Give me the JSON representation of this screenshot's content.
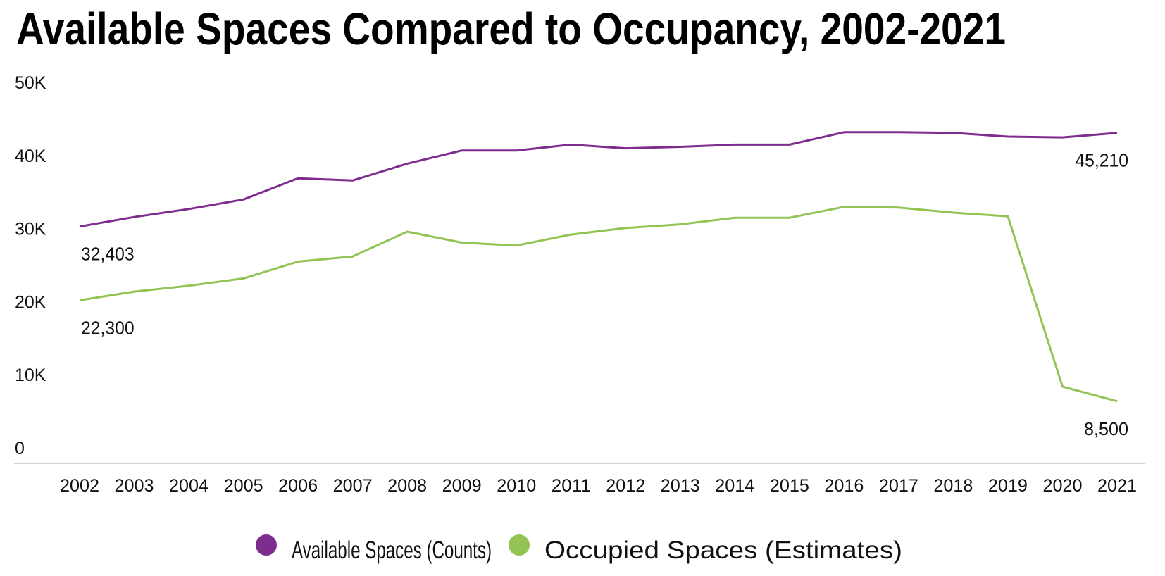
{
  "chart_data": {
    "type": "line",
    "title": "Available Spaces Compared to Occupancy, 2002-2021",
    "xlabel": "",
    "ylabel": "",
    "x": [
      "2002",
      "2003",
      "2004",
      "2005",
      "2006",
      "2007",
      "2008",
      "2009",
      "2010",
      "2011",
      "2012",
      "2013",
      "2014",
      "2015",
      "2016",
      "2017",
      "2018",
      "2019",
      "2020",
      "2021"
    ],
    "ylim": [
      0,
      50000
    ],
    "yticks": [
      0,
      10000,
      20000,
      30000,
      40000,
      50000
    ],
    "ytick_labels": [
      "0",
      "10K",
      "20K",
      "30K",
      "40K",
      "50K"
    ],
    "grid": false,
    "legend_position": "bottom-center",
    "series": [
      {
        "name": "Available Spaces (Counts)",
        "color": "#7e2d8e",
        "values": [
          32403,
          33700,
          34800,
          36100,
          39000,
          38700,
          41000,
          42800,
          42800,
          43600,
          43100,
          43300,
          43600,
          43600,
          45300,
          45300,
          45200,
          44700,
          44600,
          45210
        ],
        "data_labels": [
          {
            "index": 0,
            "text": "32,403"
          },
          {
            "index": 19,
            "text": "45,210"
          }
        ]
      },
      {
        "name": "Occupied Spaces (Estimates)",
        "color": "#93c353",
        "values": [
          22300,
          23500,
          24300,
          25300,
          27600,
          28300,
          31700,
          30200,
          29800,
          31300,
          32200,
          32700,
          33600,
          33600,
          35100,
          35000,
          34300,
          33800,
          10500,
          8500
        ],
        "data_labels": [
          {
            "index": 0,
            "text": "22,300"
          },
          {
            "index": 19,
            "text": "8,500"
          }
        ]
      }
    ]
  }
}
